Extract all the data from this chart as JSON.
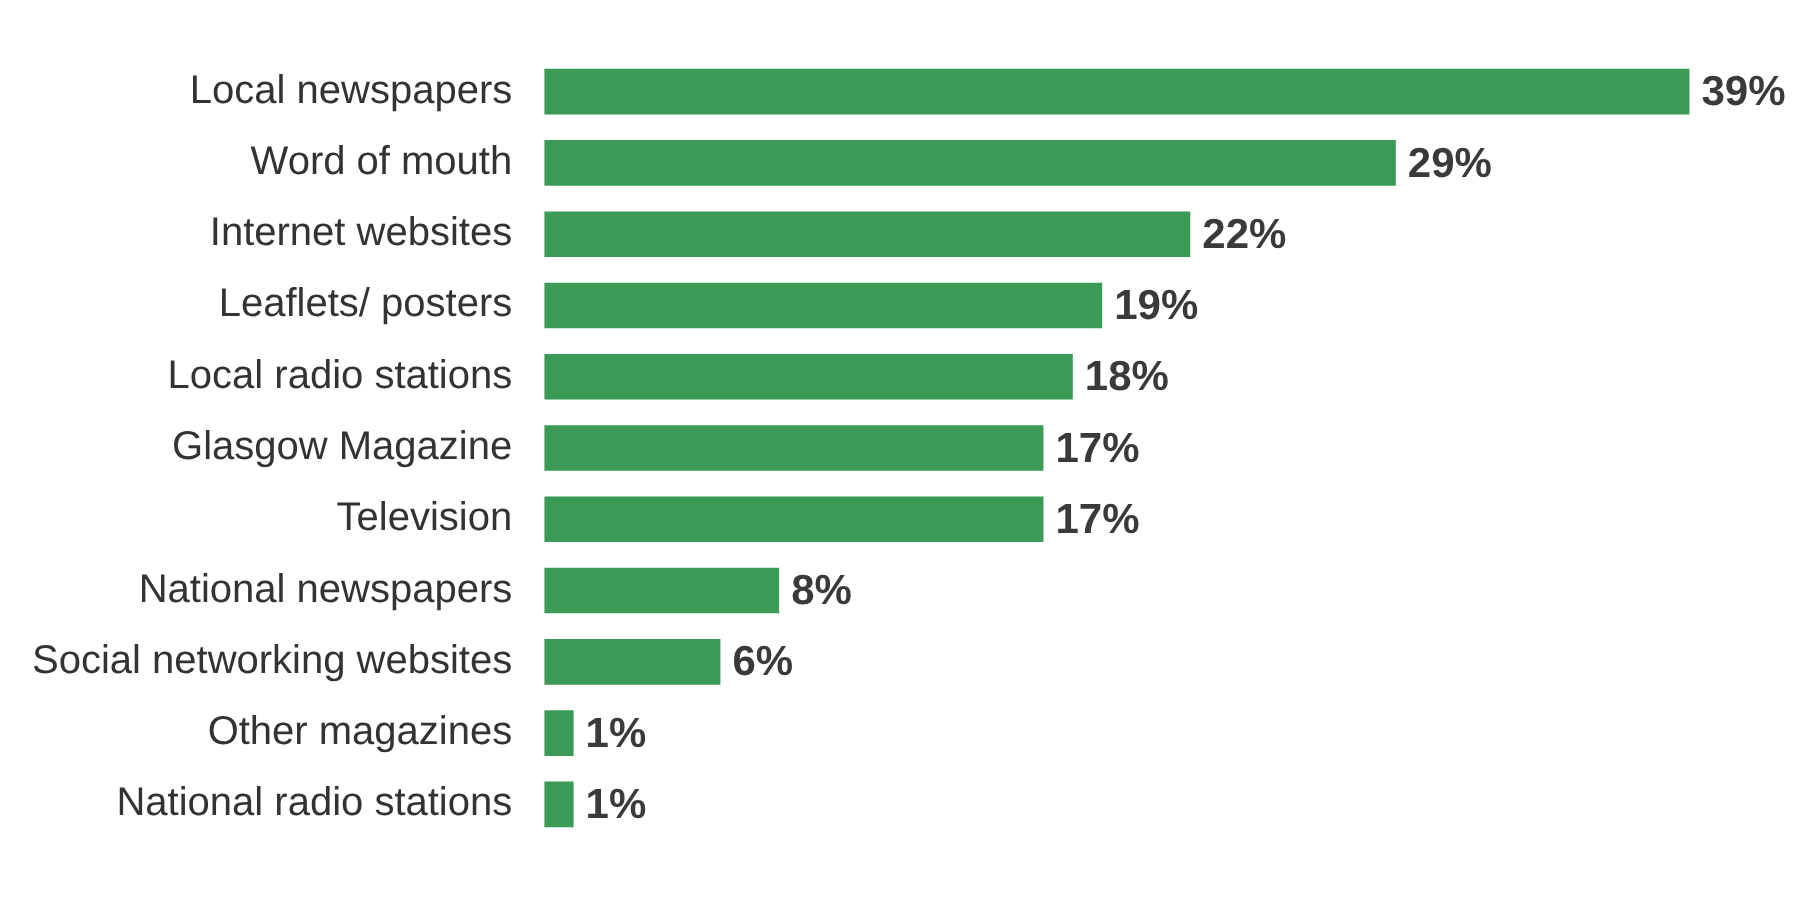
{
  "chart_data": {
    "type": "bar",
    "orientation": "horizontal",
    "categories": [
      "Local newspapers",
      "Word of mouth",
      "Internet websites",
      "Leaflets/ posters",
      "Local radio stations",
      "Glasgow Magazine",
      "Television",
      "National newspapers",
      "Social networking websites",
      "Other magazines",
      "National radio stations"
    ],
    "values": [
      39,
      29,
      22,
      19,
      18,
      17,
      17,
      8,
      6,
      1,
      1
    ],
    "color": "#3c9a57",
    "value_labels": [
      "39%",
      "29%",
      "22%",
      "19%",
      "18%",
      "17%",
      "17%",
      "8%",
      "6%",
      "1%",
      "1%"
    ],
    "legend": false
  }
}
